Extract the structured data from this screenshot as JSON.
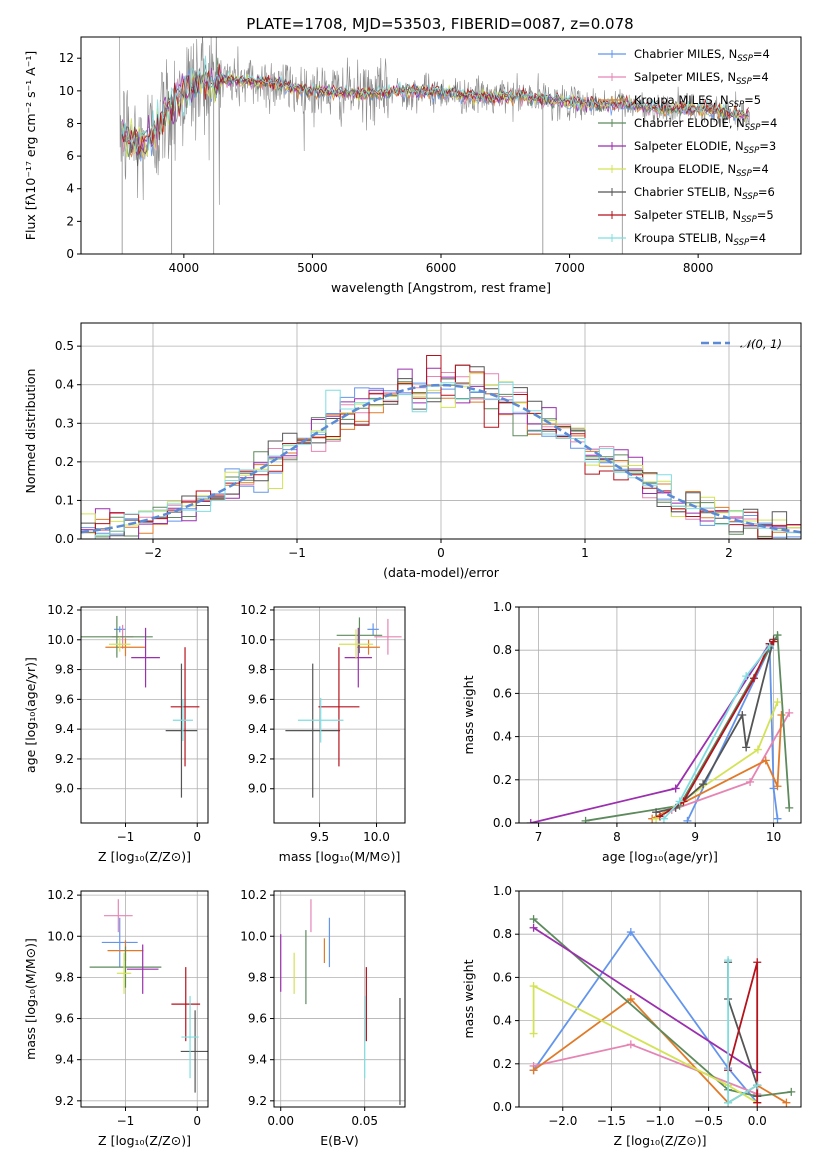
{
  "figure_title": "PLATE=1708, MJD=53503, FIBERID=0087, z=0.078",
  "colors": {
    "Chabrier MILES": "#6495ed",
    "Salpeter MILES": "#e585b3",
    "Kroupa MILES": "#e07a29",
    "Chabrier ELODIE": "#5d8a5d",
    "Salpeter ELODIE": "#9b2fae",
    "Kroupa ELODIE": "#d4e356",
    "Chabrier STELIB": "#555555",
    "Salpeter STELIB": "#b5121b",
    "Kroupa STELIB": "#7fdde0",
    "data": "#8a8a8a",
    "normal": "#5b8bd6"
  },
  "chart_data": [
    {
      "id": "spectrum",
      "type": "line",
      "xlabel": "wavelength [Angstrom, rest frame]",
      "ylabel": "Flux [fλ10⁻¹⁷ erg cm⁻² s⁻¹ A⁻¹]",
      "xlim": [
        3200,
        8800
      ],
      "ylim": [
        0,
        13.3
      ],
      "xticks": [
        "4000",
        "5000",
        "6000",
        "7000",
        "8000"
      ],
      "xtick_values": [
        4000,
        5000,
        6000,
        7000,
        8000
      ],
      "yticks": [
        "0",
        "2",
        "4",
        "6",
        "8",
        "10",
        "12"
      ],
      "ytick_values": [
        0,
        2,
        4,
        6,
        8,
        10,
        12
      ],
      "grid": false,
      "legend_position": "top-right",
      "legend": [
        {
          "name": "Chabrier MILES",
          "nssp": "4"
        },
        {
          "name": "Salpeter MILES",
          "nssp": "4"
        },
        {
          "name": "Kroupa MILES",
          "nssp": "5"
        },
        {
          "name": "Chabrier ELODIE",
          "nssp": "4"
        },
        {
          "name": "Salpeter ELODIE",
          "nssp": "3"
        },
        {
          "name": "Kroupa ELODIE",
          "nssp": "4"
        },
        {
          "name": "Chabrier STELIB",
          "nssp": "6"
        },
        {
          "name": "Salpeter STELIB",
          "nssp": "5"
        },
        {
          "name": "Kroupa STELIB",
          "nssp": "4"
        }
      ],
      "continuum": {
        "x": [
          3500,
          3550,
          3650,
          3750,
          3850,
          3950,
          4050,
          4150,
          4300,
          4500,
          4700,
          4850,
          5000,
          5200,
          5400,
          5600,
          5800,
          6000,
          6200,
          6400,
          6600,
          6800,
          7000,
          7200,
          7400,
          7600,
          7800,
          8000,
          8200,
          8400
        ],
        "y": [
          8.0,
          7.2,
          6.6,
          7.2,
          8.6,
          9.5,
          10.3,
          10.6,
          10.7,
          10.6,
          10.5,
          10.2,
          10.0,
          9.9,
          9.8,
          9.9,
          10.0,
          9.9,
          9.7,
          9.6,
          9.7,
          9.5,
          9.3,
          9.2,
          9.2,
          9.0,
          8.9,
          8.9,
          8.7,
          8.5
        ]
      }
    },
    {
      "id": "residuals",
      "type": "bar",
      "xlabel": "(data-model)/error",
      "ylabel": "Normed distribution",
      "xlim": [
        -2.5,
        2.5
      ],
      "ylim": [
        0,
        0.56
      ],
      "xticks": [
        "−2",
        "−1",
        "0",
        "1",
        "2"
      ],
      "xtick_values": [
        -2,
        -1,
        0,
        1,
        2
      ],
      "yticks": [
        "0.0",
        "0.1",
        "0.2",
        "0.3",
        "0.4",
        "0.5"
      ],
      "ytick_values": [
        0,
        0.1,
        0.2,
        0.3,
        0.4,
        0.5
      ],
      "grid": true,
      "legend_position": "top-right",
      "legend": [
        "𝒩(0, 1)"
      ],
      "bin_width": 0.1
    },
    {
      "id": "age-vs-Z",
      "type": "scatter",
      "xlabel": "Z [log₁₀(Z/Z⊙)]",
      "ylabel": "age  [log₁₀(age/yr)]",
      "xlim": [
        -1.62,
        0.15
      ],
      "ylim": [
        8.77,
        10.22
      ],
      "xticks": [
        "−1",
        "0"
      ],
      "xtick_values": [
        -1,
        0
      ],
      "yticks": [
        "9.0",
        "9.2",
        "9.4",
        "9.6",
        "9.8",
        "10.0",
        "10.2"
      ],
      "ytick_values": [
        9.0,
        9.2,
        9.4,
        9.6,
        9.8,
        10.0,
        10.2
      ],
      "grid": true,
      "points": [
        {
          "model": "Chabrier MILES",
          "x": -1.08,
          "y": 10.07,
          "xerr": 0.08,
          "yerr": 0.02
        },
        {
          "model": "Salpeter MILES",
          "x": -1.04,
          "y": 10.02,
          "xerr": 0.15,
          "yerr": 0.08
        },
        {
          "model": "Kroupa MILES",
          "x": -1.0,
          "y": 9.95,
          "xerr": 0.28,
          "yerr": 0.06
        },
        {
          "model": "Chabrier ELODIE",
          "x": -1.12,
          "y": 10.02,
          "xerr": 0.5,
          "yerr": 0.14
        },
        {
          "model": "Salpeter ELODIE",
          "x": -0.72,
          "y": 9.88,
          "xerr": 0.2,
          "yerr": 0.2
        },
        {
          "model": "Kroupa ELODIE",
          "x": -1.08,
          "y": 9.97,
          "xerr": 0.15,
          "yerr": 0.05
        },
        {
          "model": "Chabrier STELIB",
          "x": -0.22,
          "y": 9.39,
          "xerr": 0.22,
          "yerr": 0.45
        },
        {
          "model": "Salpeter STELIB",
          "x": -0.17,
          "y": 9.55,
          "xerr": 0.2,
          "yerr": 0.4
        },
        {
          "model": "Kroupa STELIB",
          "x": -0.2,
          "y": 9.46,
          "xerr": 0.14,
          "yerr": 0.14
        }
      ]
    },
    {
      "id": "age-vs-mass",
      "type": "scatter",
      "xlabel": "mass [log₁₀(M/M⊙)]",
      "ylabel": "",
      "xlim": [
        9.1,
        10.25
      ],
      "ylim": [
        8.77,
        10.22
      ],
      "xticks": [
        "9.5",
        "10.0"
      ],
      "xtick_values": [
        9.5,
        10.0
      ],
      "yticks": [
        "9.0",
        "9.2",
        "9.4",
        "9.6",
        "9.8",
        "10.0",
        "10.2"
      ],
      "ytick_values": [
        9.0,
        9.2,
        9.4,
        9.6,
        9.8,
        10.0,
        10.2
      ],
      "grid": true,
      "points": [
        {
          "model": "Chabrier MILES",
          "x": 9.97,
          "y": 10.07,
          "xerr": 0.05,
          "yerr": 0.04
        },
        {
          "model": "Salpeter MILES",
          "x": 10.1,
          "y": 10.02,
          "xerr": 0.12,
          "yerr": 0.12
        },
        {
          "model": "Kroupa MILES",
          "x": 9.93,
          "y": 9.95,
          "xerr": 0.1,
          "yerr": 0.05
        },
        {
          "model": "Chabrier ELODIE",
          "x": 9.85,
          "y": 10.03,
          "xerr": 0.2,
          "yerr": 0.12
        },
        {
          "model": "Salpeter ELODIE",
          "x": 9.84,
          "y": 9.88,
          "xerr": 0.12,
          "yerr": 0.2
        },
        {
          "model": "Kroupa ELODIE",
          "x": 9.82,
          "y": 9.97,
          "xerr": 0.15,
          "yerr": 0.1
        },
        {
          "model": "Chabrier STELIB",
          "x": 9.44,
          "y": 9.39,
          "xerr": 0.24,
          "yerr": 0.45
        },
        {
          "model": "Salpeter STELIB",
          "x": 9.67,
          "y": 9.55,
          "xerr": 0.18,
          "yerr": 0.4
        },
        {
          "model": "Kroupa STELIB",
          "x": 9.51,
          "y": 9.46,
          "xerr": 0.2,
          "yerr": 0.15
        }
      ]
    },
    {
      "id": "weights-vs-age",
      "type": "line",
      "xlabel": "age  [log₁₀(age/yr)]",
      "ylabel": "mass weight",
      "xlim": [
        6.75,
        10.35
      ],
      "ylim": [
        0,
        1.0
      ],
      "xticks": [
        "7",
        "8",
        "9",
        "10"
      ],
      "xtick_values": [
        7,
        8,
        9,
        10
      ],
      "yticks": [
        "0.0",
        "0.2",
        "0.4",
        "0.6",
        "0.8",
        "1.0"
      ],
      "ytick_values": [
        0,
        0.2,
        0.4,
        0.6,
        0.8,
        1.0
      ],
      "grid": true,
      "series": [
        {
          "model": "Chabrier MILES",
          "x": [
            8.9,
            9.95,
            10.0,
            10.05
          ],
          "y": [
            0.01,
            0.81,
            0.16,
            0.02
          ]
        },
        {
          "model": "Salpeter MILES",
          "x": [
            8.7,
            9.7,
            10.2
          ],
          "y": [
            0.06,
            0.19,
            0.51
          ]
        },
        {
          "model": "Kroupa MILES",
          "x": [
            8.45,
            9.9,
            10.05,
            10.1
          ],
          "y": [
            0.02,
            0.29,
            0.17,
            0.5
          ]
        },
        {
          "model": "Chabrier ELODIE",
          "x": [
            7.6,
            8.8,
            10.05,
            10.2
          ],
          "y": [
            0.01,
            0.08,
            0.87,
            0.07
          ]
        },
        {
          "model": "Salpeter ELODIE",
          "x": [
            6.9,
            8.75,
            9.95
          ],
          "y": [
            0.0,
            0.16,
            0.83
          ]
        },
        {
          "model": "Kroupa ELODIE",
          "x": [
            8.5,
            9.8,
            10.05
          ],
          "y": [
            0.02,
            0.34,
            0.56
          ]
        },
        {
          "model": "Chabrier STELIB",
          "x": [
            8.5,
            8.75,
            9.1,
            9.6,
            9.65,
            10.0
          ],
          "y": [
            0.05,
            0.07,
            0.18,
            0.5,
            0.35,
            0.85
          ]
        },
        {
          "model": "Salpeter STELIB",
          "x": [
            8.55,
            8.85,
            9.75,
            9.95,
            10.0
          ],
          "y": [
            0.03,
            0.1,
            0.67,
            0.83,
            0.84
          ]
        },
        {
          "model": "Kroupa STELIB",
          "x": [
            8.6,
            8.8,
            9.65,
            9.95
          ],
          "y": [
            0.02,
            0.1,
            0.68,
            0.82
          ]
        }
      ]
    },
    {
      "id": "mass-vs-Z",
      "type": "scatter",
      "xlabel": "Z [log₁₀(Z/Z⊙)]",
      "ylabel": "mass [log₁₀(M/M⊙)]",
      "xlim": [
        -1.62,
        0.15
      ],
      "ylim": [
        9.17,
        10.22
      ],
      "xticks": [
        "−1",
        "0"
      ],
      "xtick_values": [
        -1,
        0
      ],
      "yticks": [
        "9.2",
        "9.4",
        "9.6",
        "9.8",
        "10.0",
        "10.2"
      ],
      "ytick_values": [
        9.2,
        9.4,
        9.6,
        9.8,
        10.0,
        10.2
      ],
      "grid": true,
      "points": [
        {
          "model": "Chabrier MILES",
          "x": -1.08,
          "y": 9.97,
          "xerr": 0.25,
          "yerr": 0.12
        },
        {
          "model": "Salpeter MILES",
          "x": -1.1,
          "y": 10.1,
          "xerr": 0.2,
          "yerr": 0.08
        },
        {
          "model": "Kroupa MILES",
          "x": -1.0,
          "y": 9.93,
          "xerr": 0.25,
          "yerr": 0.05
        },
        {
          "model": "Chabrier ELODIE",
          "x": -1.0,
          "y": 9.85,
          "xerr": 0.5,
          "yerr": 0.1
        },
        {
          "model": "Salpeter ELODIE",
          "x": -0.76,
          "y": 9.84,
          "xerr": 0.22,
          "yerr": 0.12
        },
        {
          "model": "Kroupa ELODIE",
          "x": -1.02,
          "y": 9.82,
          "xerr": 0.1,
          "yerr": 0.1
        },
        {
          "model": "Chabrier STELIB",
          "x": -0.03,
          "y": 9.44,
          "xerr": 0.2,
          "yerr": 0.2
        },
        {
          "model": "Salpeter STELIB",
          "x": -0.16,
          "y": 9.67,
          "xerr": 0.2,
          "yerr": 0.18
        },
        {
          "model": "Kroupa STELIB",
          "x": -0.1,
          "y": 9.51,
          "xerr": 0.12,
          "yerr": 0.2
        }
      ]
    },
    {
      "id": "mass-vs-ebv",
      "type": "scatter",
      "xlabel": "E(B-V)",
      "ylabel": "",
      "xlim": [
        -0.004,
        0.074
      ],
      "ylim": [
        9.17,
        10.22
      ],
      "xticks": [
        "0.00",
        "0.05"
      ],
      "xtick_values": [
        0.0,
        0.05
      ],
      "yticks": [
        "9.2",
        "9.4",
        "9.6",
        "9.8",
        "10.0",
        "10.2"
      ],
      "ytick_values": [
        9.2,
        9.4,
        9.6,
        9.8,
        10.0,
        10.2
      ],
      "grid": true,
      "points": [
        {
          "model": "Salpeter ELODIE",
          "x": 0.0,
          "y": 9.87,
          "yerr": 0.14
        },
        {
          "model": "Kroupa ELODIE",
          "x": 0.008,
          "y": 9.82,
          "yerr": 0.1
        },
        {
          "model": "Chabrier ELODIE",
          "x": 0.015,
          "y": 9.85,
          "yerr": 0.18
        },
        {
          "model": "Salpeter MILES",
          "x": 0.018,
          "y": 10.1,
          "yerr": 0.08
        },
        {
          "model": "Kroupa MILES",
          "x": 0.026,
          "y": 9.93,
          "yerr": 0.06
        },
        {
          "model": "Chabrier MILES",
          "x": 0.029,
          "y": 9.97,
          "yerr": 0.12
        },
        {
          "model": "Kroupa STELIB",
          "x": 0.05,
          "y": 9.51,
          "yerr": 0.2
        },
        {
          "model": "Salpeter STELIB",
          "x": 0.051,
          "y": 9.67,
          "yerr": 0.18
        },
        {
          "model": "Chabrier STELIB",
          "x": 0.071,
          "y": 9.44,
          "yerr": 0.26
        }
      ]
    },
    {
      "id": "weights-vs-Z",
      "type": "line",
      "xlabel": "Z [log₁₀(Z/Z⊙)]",
      "ylabel": "mass weight",
      "xlim": [
        -2.45,
        0.45
      ],
      "ylim": [
        0,
        1.0
      ],
      "xticks": [
        "−2.0",
        "−1.5",
        "−1.0",
        "−0.5",
        "0.0"
      ],
      "xtick_values": [
        -2.0,
        -1.5,
        -1.0,
        -0.5,
        0.0
      ],
      "yticks": [
        "0.0",
        "0.2",
        "0.4",
        "0.6",
        "0.8",
        "1.0"
      ],
      "ytick_values": [
        0,
        0.2,
        0.4,
        0.6,
        0.8,
        1.0
      ],
      "grid": true,
      "series": [
        {
          "model": "Chabrier MILES",
          "x": [
            -2.3,
            -1.3,
            -0.3,
            0.0
          ],
          "y": [
            0.17,
            0.81,
            0.18,
            0.02
          ]
        },
        {
          "model": "Salpeter MILES",
          "x": [
            -2.3,
            -1.3,
            0.0
          ],
          "y": [
            0.19,
            0.29,
            0.06
          ]
        },
        {
          "model": "Kroupa MILES",
          "x": [
            -2.3,
            -1.3,
            -0.3,
            0.0,
            0.3
          ],
          "y": [
            0.17,
            0.5,
            0.02,
            0.1,
            0.02
          ]
        },
        {
          "model": "Chabrier ELODIE",
          "x": [
            -2.3,
            -0.3,
            0.0,
            0.35
          ],
          "y": [
            0.87,
            0.08,
            0.05,
            0.07
          ]
        },
        {
          "model": "Salpeter ELODIE",
          "x": [
            -2.3,
            0.0
          ],
          "y": [
            0.83,
            0.16
          ]
        },
        {
          "model": "Kroupa ELODIE",
          "x": [
            -2.3,
            -2.3,
            -0.3,
            0.0
          ],
          "y": [
            0.34,
            0.56,
            0.1,
            0.02
          ]
        },
        {
          "model": "Chabrier STELIB",
          "x": [
            -0.3,
            -0.3,
            0.0,
            0.0
          ],
          "y": [
            0.67,
            0.5,
            0.1,
            0.05
          ]
        },
        {
          "model": "Salpeter STELIB",
          "x": [
            -0.3,
            0.0,
            0.0
          ],
          "y": [
            0.17,
            0.67,
            0.02
          ]
        },
        {
          "model": "Kroupa STELIB",
          "x": [
            -0.3,
            -0.3,
            0.0
          ],
          "y": [
            0.68,
            0.02,
            0.1
          ]
        }
      ]
    }
  ]
}
